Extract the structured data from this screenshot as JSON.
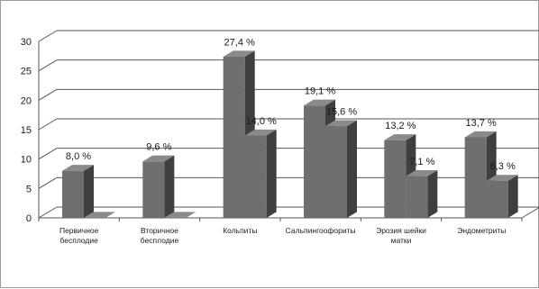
{
  "chart_data": {
    "type": "bar",
    "title": "",
    "xlabel": "",
    "ylabel": "",
    "ylim": [
      0,
      30
    ],
    "yticks": [
      0,
      5,
      10,
      15,
      20,
      25,
      30
    ],
    "grid": true,
    "legend": "none",
    "style": "3d-clustered",
    "categories": [
      [
        "Первичное",
        "бесплодие"
      ],
      [
        "Вторичное",
        "бесплодие"
      ],
      [
        "Кольпиты"
      ],
      [
        "Сальпингоофориты"
      ],
      [
        "Эрозия шейки",
        "матки"
      ],
      [
        "Эндометриты"
      ]
    ],
    "series": [
      {
        "values": [
          8.0,
          9.6,
          27.4,
          19.1,
          13.2,
          13.7
        ],
        "labels": [
          "8,0 %",
          "9,6 %",
          "27,4 %",
          "19,1 %",
          "13,2 %",
          "13,7 %"
        ],
        "color": "#6f6f6f"
      },
      {
        "values": [
          0,
          0,
          14.0,
          15.6,
          7.1,
          6.3
        ],
        "labels": [
          "",
          "",
          "14,0 %",
          "15,6 %",
          "7,1 %",
          "6,3 %"
        ],
        "color": "#6f6f6f"
      }
    ]
  }
}
